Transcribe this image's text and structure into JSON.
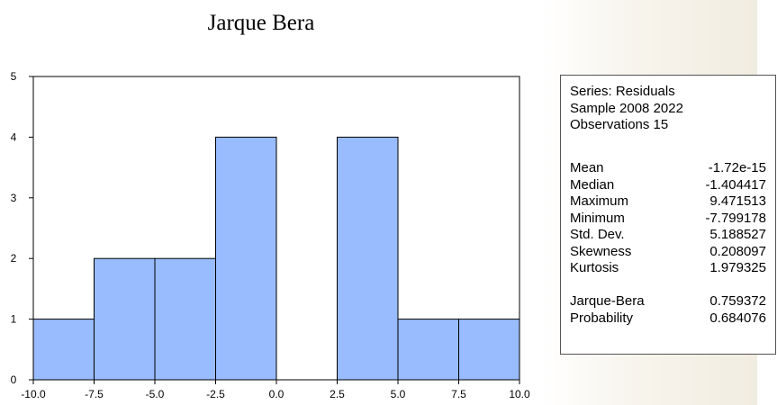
{
  "chart_data": {
    "type": "bar",
    "title": "Jarque Bera",
    "bin_edges": [
      -10.0,
      -7.5,
      -5.0,
      -2.5,
      0.0,
      2.5,
      5.0,
      7.5,
      10.0
    ],
    "values": [
      1,
      2,
      2,
      4,
      0,
      4,
      1,
      1
    ],
    "xticks": [
      "-10.0",
      "-7.5",
      "-5.0",
      "-2.5",
      "0.0",
      "2.5",
      "5.0",
      "7.5",
      "10.0"
    ],
    "yticks": [
      "0",
      "1",
      "2",
      "3",
      "4",
      "5"
    ],
    "xlim": [
      -10.0,
      10.0
    ],
    "ylim": [
      0,
      5
    ],
    "bar_color": "#99bbff",
    "grid": false,
    "legend": "none"
  },
  "stats": {
    "series": "Series: Residuals",
    "sample": "Sample 2008 2022",
    "observations": "Observations 15",
    "rows": [
      {
        "label": "Mean",
        "value": "-1.72e-15"
      },
      {
        "label": "Median",
        "value": "-1.404417"
      },
      {
        "label": "Maximum",
        "value": "9.471513"
      },
      {
        "label": "Minimum",
        "value": "-7.799178"
      },
      {
        "label": "Std. Dev.",
        "value": "5.188527"
      },
      {
        "label": "Skewness",
        "value": "0.208097"
      },
      {
        "label": "Kurtosis",
        "value": "1.979325"
      }
    ],
    "test_rows": [
      {
        "label": "Jarque-Bera",
        "value": "0.759372"
      },
      {
        "label": "Probability",
        "value": "0.684076"
      }
    ]
  }
}
